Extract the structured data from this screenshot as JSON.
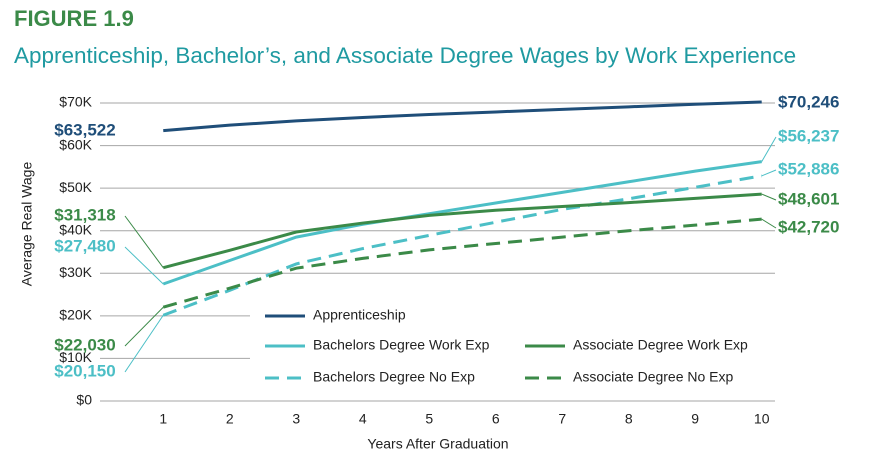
{
  "figure_label": "FIGURE 1.9",
  "chart_data": {
    "type": "line",
    "title": "Apprenticeship, Bachelor’s, and Associate Degree Wages by Work Experience",
    "x_label": "Years After Graduation",
    "y_label": "Average Real Wage",
    "x": [
      1,
      2,
      3,
      4,
      5,
      6,
      7,
      8,
      9,
      10
    ],
    "xlim": [
      0.5,
      10.2
    ],
    "xticks": [
      1,
      2,
      3,
      4,
      5,
      6,
      7,
      8,
      9,
      10
    ],
    "ylim": [
      0,
      70000
    ],
    "yticks": [
      {
        "value": 0,
        "label": "$0"
      },
      {
        "value": 10000,
        "label": "$10K"
      },
      {
        "value": 20000,
        "label": "$20K"
      },
      {
        "value": 30000,
        "label": "$30K"
      },
      {
        "value": 40000,
        "label": "$40K"
      },
      {
        "value": 50000,
        "label": "$50K"
      },
      {
        "value": 60000,
        "label": "$60K"
      },
      {
        "value": 70000,
        "label": "$70K"
      }
    ],
    "grid": true,
    "series": [
      {
        "name": "Apprenticeship",
        "color": "#1f4e79",
        "dashed": false,
        "values": [
          63522,
          64800,
          65800,
          66600,
          67300,
          67900,
          68500,
          69100,
          69700,
          70246
        ],
        "value_labels": [
          "$63,522",
          null,
          null,
          null,
          null,
          null,
          null,
          null,
          null,
          "$70,246"
        ]
      },
      {
        "name": "Bachelors Degree Work Exp",
        "color": "#4cbfc6",
        "dashed": false,
        "values": [
          27480,
          33000,
          38500,
          41500,
          44000,
          46500,
          49000,
          51500,
          54000,
          56237
        ],
        "value_labels": [
          "$27,480",
          null,
          null,
          null,
          null,
          null,
          null,
          null,
          null,
          "$56,237"
        ]
      },
      {
        "name": "Bachelors Degree No Exp",
        "color": "#4cbfc6",
        "dashed": true,
        "values": [
          20150,
          26000,
          32200,
          35800,
          38900,
          42000,
          45000,
          47500,
          50200,
          52886
        ],
        "value_labels": [
          "$20,150",
          null,
          null,
          null,
          null,
          null,
          null,
          null,
          null,
          "$52,886"
        ]
      },
      {
        "name": "Associate Degree Work Exp",
        "color": "#3b8a48",
        "dashed": false,
        "values": [
          31318,
          35400,
          39700,
          41800,
          43600,
          44800,
          45700,
          46600,
          47600,
          48601
        ],
        "value_labels": [
          "$31,318",
          null,
          null,
          null,
          null,
          null,
          null,
          null,
          null,
          "$48,601"
        ]
      },
      {
        "name": "Associate Degree No Exp",
        "color": "#3b8a48",
        "dashed": true,
        "values": [
          22030,
          26500,
          31200,
          33500,
          35500,
          37000,
          38500,
          40000,
          41300,
          42720
        ],
        "value_labels": [
          "$22,030",
          null,
          null,
          null,
          null,
          null,
          null,
          null,
          null,
          "$42,720"
        ]
      }
    ]
  }
}
